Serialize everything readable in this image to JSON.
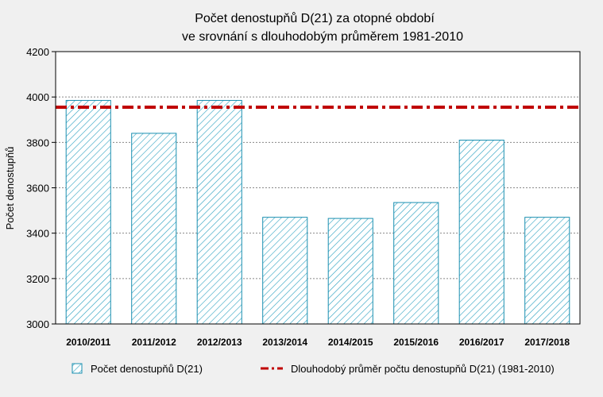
{
  "chart_data": {
    "type": "bar",
    "title": "Počet denostupňů D(21) za otopné období",
    "subtitle": "ve srovnání s dlouhodobým průměrem 1981-2010",
    "xlabel": "",
    "ylabel": "Počet denostupňů",
    "ylim": [
      3000,
      4200
    ],
    "yticks": [
      3000,
      3200,
      3400,
      3600,
      3800,
      4000,
      4200
    ],
    "grid": true,
    "legend_position": "bottom",
    "categories": [
      "2010/2011",
      "2011/2012",
      "2012/2013",
      "2013/2014",
      "2014/2015",
      "2015/2016",
      "2016/2017",
      "2017/2018"
    ],
    "series": [
      {
        "name": "Počet denostupňů D(21)",
        "kind": "bar",
        "values": [
          3985,
          3840,
          3985,
          3470,
          3465,
          3535,
          3810,
          3470
        ]
      },
      {
        "name": "Dlouhodobý průměr počtu denostupňů D(21) (1981-2010)",
        "kind": "line",
        "value": 3955
      }
    ],
    "colors": {
      "bar_stroke": "#1a8fb0",
      "bar_hatch": "#2aa0c0",
      "bar_fill": "#ffffff",
      "average_line": "#c00000",
      "background": "#f0f0f0",
      "plot_background": "#ffffff"
    }
  }
}
